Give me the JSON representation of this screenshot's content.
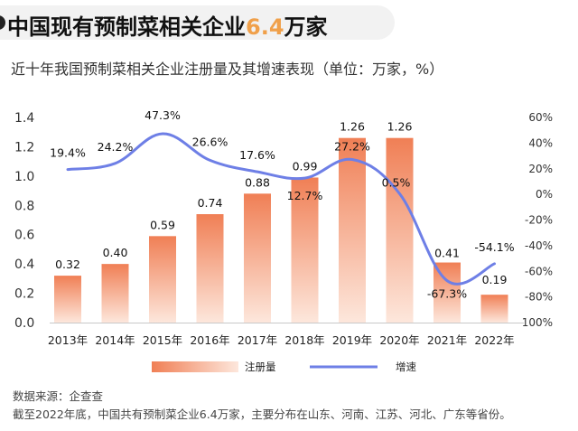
{
  "header": {
    "title_prefix": "中国现有预制菜相关企业",
    "title_highlight": "6.4",
    "title_suffix": "万家",
    "subtitle": "近十年我国预制菜相关企业注册量及其增速表现（单位：万家，%）"
  },
  "chart_data": {
    "type": "bar",
    "categories": [
      "2013年",
      "2014年",
      "2015年",
      "2016年",
      "2017年",
      "2018年",
      "2019年",
      "2020年",
      "2021年",
      "2022年"
    ],
    "series": [
      {
        "name": "注册量",
        "type": "bar",
        "axis": "left",
        "values": [
          0.32,
          0.4,
          0.59,
          0.74,
          0.88,
          0.99,
          1.26,
          1.26,
          0.41,
          0.19
        ],
        "labels": [
          "0.32",
          "0.40",
          "0.59",
          "0.74",
          "0.88",
          "0.99",
          "1.26",
          "1.26",
          "0.41",
          "0.19"
        ]
      },
      {
        "name": "增速",
        "type": "line",
        "axis": "right",
        "values": [
          19.4,
          24.2,
          47.3,
          26.6,
          17.6,
          12.7,
          27.2,
          0.5,
          -67.3,
          -54.1
        ],
        "labels": [
          "19.4%",
          "24.2%",
          "47.3%",
          "26.6%",
          "17.6%",
          "12.7%",
          "27.2%",
          "0.5%",
          "-67.3%",
          "-54.1%"
        ]
      }
    ],
    "left_axis": {
      "min": 0,
      "max": 1.4,
      "ticks": [
        "0.0",
        "0.2",
        "0.4",
        "0.6",
        "0.8",
        "1.0",
        "1.2",
        "1.4"
      ]
    },
    "right_axis": {
      "min": -100,
      "max": 60,
      "ticks": [
        "-100%",
        "-80%",
        "-60%",
        "-40%",
        "-20%",
        "0%",
        "20%",
        "40%",
        "60%"
      ]
    },
    "legend": {
      "bar": "注册量",
      "line": "增速",
      "position": "bottom"
    },
    "colors": {
      "bar_top": "#f07f55",
      "bar_bottom": "#fde7dc",
      "line": "#6e7fe6"
    }
  },
  "footer": {
    "source": "数据来源：企查查",
    "note": "截至2022年底，中国共有预制菜企业6.4万家，主要分布在山东、河南、江苏、河北、广东等省份。"
  }
}
